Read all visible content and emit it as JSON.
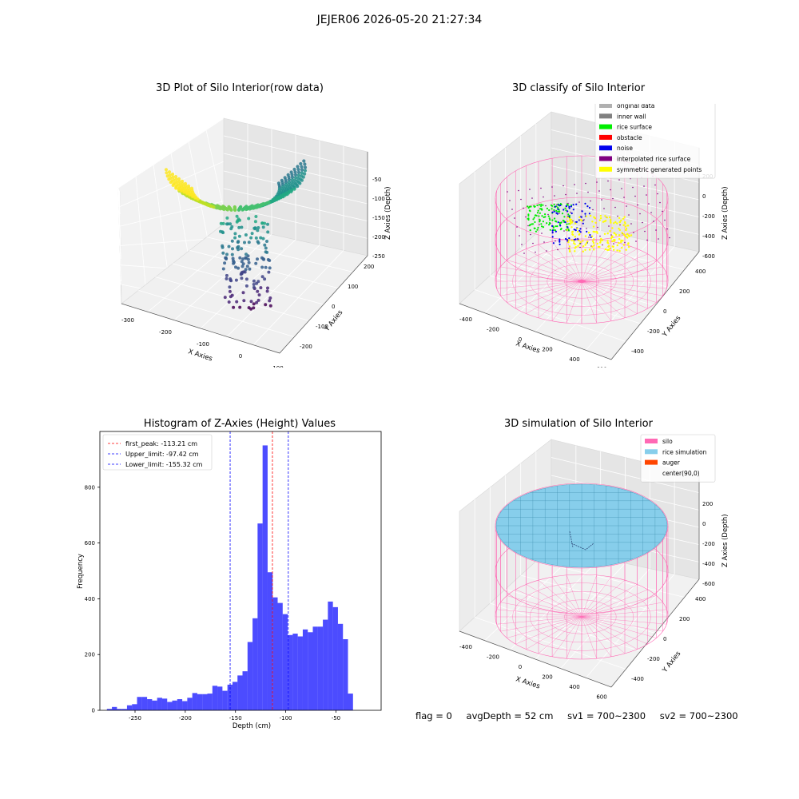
{
  "suptitle": "JEJER06 2026-05-20 21:27:34",
  "panels": {
    "raw": {
      "title": "3D Plot of Silo Interior(row data)",
      "xlabel": "X Axies",
      "ylabel": "Y Axies",
      "zlabel": "Z Axies (Depth)",
      "xticks": [
        "-300",
        "-200",
        "-100",
        "0",
        "100"
      ],
      "yticks": [
        "-200",
        "-100",
        "0",
        "100",
        "200"
      ],
      "zticks": [
        "-50",
        "-100",
        "-150",
        "-200",
        "-250"
      ]
    },
    "classify": {
      "title": "3D classify of Silo Interior",
      "xlabel": "X Axies",
      "ylabel": "Y Axies",
      "zlabel": "Z Axies (Depth)",
      "xticks": [
        "-400",
        "-200",
        "0",
        "200",
        "400",
        "600"
      ],
      "yticks": [
        "-400",
        "-200",
        "0",
        "200",
        "400"
      ],
      "zticks": [
        "200",
        "0",
        "-200",
        "-400",
        "-600"
      ],
      "legend": [
        {
          "label": "original data",
          "color": "#b0b0b0"
        },
        {
          "label": "inner wall",
          "color": "#808080"
        },
        {
          "label": "rice surface",
          "color": "#00ee00"
        },
        {
          "label": "obstacle",
          "color": "#ff0000"
        },
        {
          "label": "noise",
          "color": "#0000ee"
        },
        {
          "label": "interpolated rice surface",
          "color": "#800080"
        },
        {
          "label": "symmetric generated points",
          "color": "#ffff00"
        }
      ]
    },
    "simulation": {
      "title": "3D simulation of Silo Interior",
      "xlabel": "X Axies",
      "ylabel": "Y Axies",
      "zlabel": "Z Axies (Depth)",
      "xticks": [
        "-400",
        "-200",
        "0",
        "200",
        "400",
        "600"
      ],
      "yticks": [
        "-400",
        "-200",
        "0",
        "200",
        "400"
      ],
      "zticks": [
        "200",
        "0",
        "-200",
        "-400",
        "-600"
      ],
      "legend": [
        {
          "label": "silo",
          "color": "#ff69b4"
        },
        {
          "label": "rice simulation",
          "color": "#87ceeb"
        },
        {
          "label": "auger",
          "color": "#ff4500"
        },
        {
          "label": "center(90,0)",
          "color": ""
        }
      ]
    }
  },
  "status": {
    "flag": "flag = 0",
    "avg_depth": "avgDepth = 52 cm",
    "sv1": "sv1 = 700~2300",
    "sv2": "sv2 = 700~2300"
  },
  "chart_data": {
    "type": "bar",
    "title": "Histogram of Z-Axies (Height) Values",
    "xlabel": "Depth (cm)",
    "ylabel": "Frequency",
    "bin_width": 5,
    "bin_start": -278,
    "values": [
      5,
      12,
      5,
      5,
      18,
      22,
      48,
      48,
      40,
      35,
      45,
      42,
      30,
      35,
      40,
      33,
      45,
      62,
      58,
      58,
      60,
      88,
      85,
      70,
      92,
      102,
      125,
      140,
      245,
      330,
      670,
      950,
      495,
      405,
      385,
      345,
      270,
      275,
      265,
      290,
      280,
      300,
      300,
      325,
      390,
      370,
      310,
      255,
      60
    ],
    "xlim": [
      -285,
      -5
    ],
    "ylim": [
      0,
      1000
    ],
    "xticks": [
      -250,
      -200,
      -150,
      -100,
      -50
    ],
    "yticks": [
      0,
      200,
      400,
      600,
      800
    ],
    "color": "#0000ff",
    "vlines": [
      {
        "label": "first_peak: -113.21 cm",
        "value": -113.21,
        "color": "#ff0000"
      },
      {
        "label": "Upper_limit: -97.42 cm",
        "value": -97.42,
        "color": "#0000ff"
      },
      {
        "label": "Lower_limit: -155.32 cm",
        "value": -155.32,
        "color": "#0000ff"
      }
    ]
  }
}
